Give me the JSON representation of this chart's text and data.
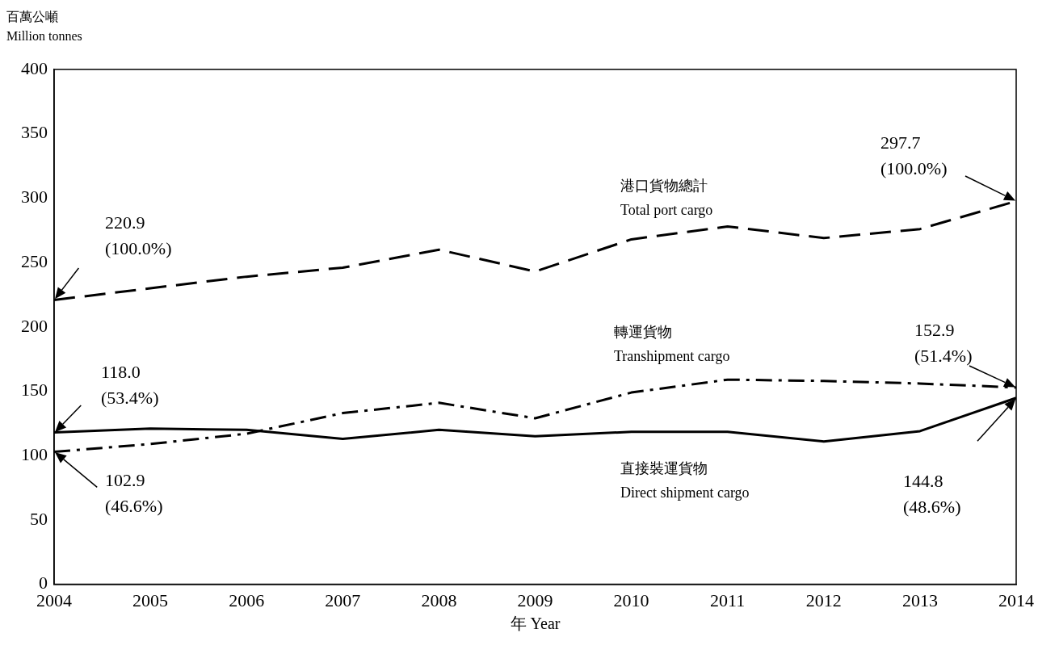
{
  "chart_data": {
    "type": "line",
    "ylabel": "百萬公噸\nMillion tonnes",
    "xlabel": "年 Year",
    "x": [
      2004,
      2005,
      2006,
      2007,
      2008,
      2009,
      2010,
      2011,
      2012,
      2013,
      2014
    ],
    "xlim": [
      2004,
      2014
    ],
    "xticks": [
      2004,
      2005,
      2006,
      2007,
      2008,
      2009,
      2010,
      2011,
      2012,
      2013,
      2014
    ],
    "ylim": [
      0,
      400
    ],
    "yticks": [
      0,
      50,
      100,
      150,
      200,
      250,
      300,
      350,
      400
    ],
    "grid": false,
    "legend": false,
    "marker": "none",
    "series": [
      {
        "name": "港口貨物總計\nTotal port cargo",
        "color": "#000000",
        "line_style": "dashed",
        "values": [
          220.9,
          230,
          239,
          246,
          260,
          243,
          268,
          278,
          269,
          276,
          297.7
        ]
      },
      {
        "name": "轉運貨物\nTranshipment cargo",
        "color": "#000000",
        "line_style": "dashdot",
        "values": [
          102.9,
          109,
          117,
          133,
          141,
          129,
          149,
          159,
          158,
          156,
          152.9
        ]
      },
      {
        "name": "直接裝運貨物\nDirect shipment cargo",
        "color": "#000000",
        "line_style": "solid",
        "values": [
          118.0,
          121,
          120,
          113,
          120,
          115,
          118.5,
          118.5,
          111,
          119,
          144.8
        ]
      }
    ],
    "annotations": [
      "220.9\n(100.0%)",
      "297.7\n(100.0%)",
      "118.0\n(53.4%)",
      "102.9\n(46.6%)",
      "152.9\n(51.4%)",
      "144.8\n(48.6%)"
    ]
  }
}
